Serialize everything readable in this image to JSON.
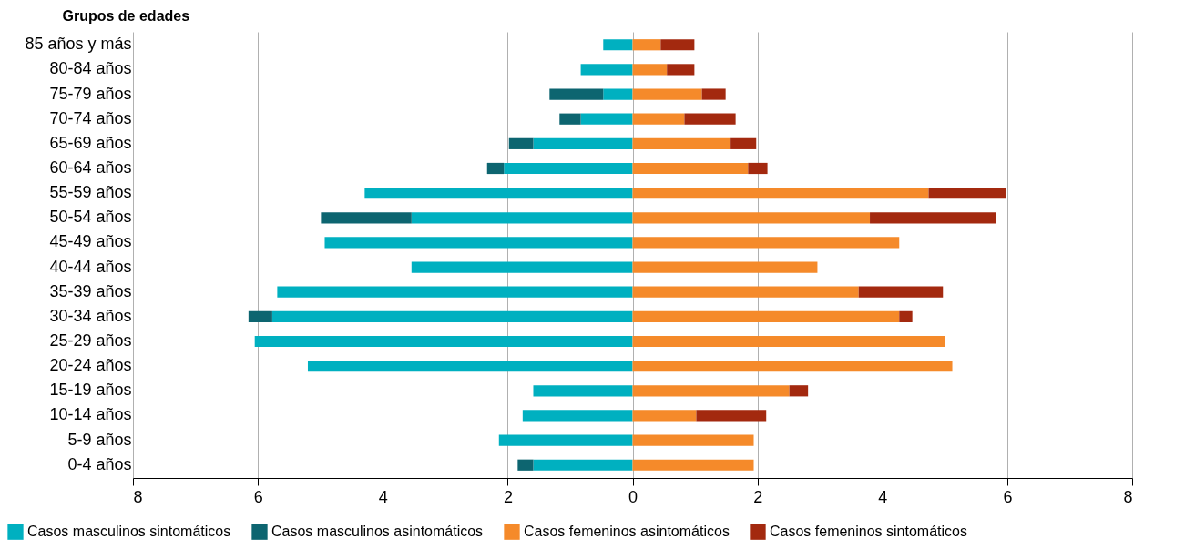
{
  "chart_data": {
    "type": "bar",
    "orientation": "horizontal",
    "stacked": true,
    "ylabel": "Grupos de edades",
    "categories": [
      "85 años y más",
      "80-84 años",
      "75-79 años",
      "70-74 años",
      "65-69 años",
      "60-64 años",
      "55-59 años",
      "50-54 años",
      "45-49 años",
      "40-44 años",
      "35-39 años",
      "30-34 años",
      "25-29 años",
      "20-24 años",
      "15-19 años",
      "10-14 años",
      "5-9 años",
      "0-4 años"
    ],
    "series": [
      {
        "name": "Casos masculinos sintomáticos",
        "color": "#00b0c0",
        "values": [
          -0.47,
          -0.83,
          -0.47,
          -0.83,
          -1.59,
          -2.06,
          -4.29,
          -3.54,
          -4.93,
          -3.54,
          -5.69,
          -5.77,
          -6.05,
          -5.2,
          -1.59,
          -1.76,
          -2.14,
          -1.59
        ]
      },
      {
        "name": "Casos masculinos asintomáticos",
        "color": "#0d6570",
        "values": [
          null,
          null,
          -0.86,
          -0.34,
          -0.39,
          -0.27,
          null,
          -1.45,
          null,
          null,
          null,
          -0.38,
          null,
          null,
          null,
          null,
          null,
          -0.25
        ]
      },
      {
        "name": "Casos femeninos asintomáticos",
        "color": "#f58a2a",
        "values": [
          0.45,
          0.55,
          1.11,
          0.83,
          1.57,
          1.85,
          4.74,
          3.8,
          4.27,
          2.96,
          3.62,
          4.27,
          5.0,
          5.12,
          2.51,
          1.02,
          1.94,
          1.94
        ]
      },
      {
        "name": "Casos femeninos sintomáticos",
        "color": "#a3290f",
        "values": [
          0.54,
          0.44,
          0.38,
          0.82,
          0.41,
          0.31,
          1.24,
          2.02,
          null,
          null,
          1.35,
          0.21,
          null,
          null,
          0.3,
          1.12,
          null,
          null
        ]
      }
    ],
    "xlim": [
      -8,
      8
    ],
    "xticks": [
      {
        "value": -8,
        "label": "8"
      },
      {
        "value": -6,
        "label": "6"
      },
      {
        "value": -4,
        "label": "4"
      },
      {
        "value": -2,
        "label": "2"
      },
      0,
      2,
      4,
      6,
      8
    ],
    "grid": "x",
    "legend": "bottom"
  }
}
